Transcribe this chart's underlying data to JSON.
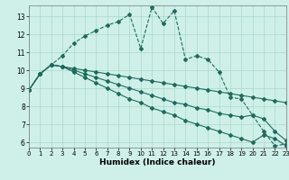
{
  "xlabel": "Humidex (Indice chaleur)",
  "background_color": "#cef0e8",
  "grid_color": "#aad8cc",
  "line_color": "#1e6b5e",
  "xlim": [
    0,
    23
  ],
  "ylim": [
    5.7,
    13.6
  ],
  "xticks": [
    0,
    1,
    2,
    3,
    4,
    5,
    6,
    7,
    8,
    9,
    10,
    11,
    12,
    13,
    14,
    15,
    16,
    17,
    18,
    19,
    20,
    21,
    22,
    23
  ],
  "yticks": [
    6,
    7,
    8,
    9,
    10,
    11,
    12,
    13
  ],
  "series1_x": [
    0,
    1,
    2,
    3,
    4,
    5,
    6,
    7,
    8,
    9,
    10,
    11,
    12,
    13,
    14,
    15,
    16,
    17,
    18,
    19,
    20,
    21,
    22,
    23
  ],
  "series1_y": [
    8.9,
    9.8,
    10.3,
    10.8,
    11.5,
    11.9,
    12.2,
    12.5,
    12.7,
    13.1,
    11.2,
    13.5,
    12.6,
    13.3,
    10.6,
    10.8,
    10.6,
    9.9,
    8.5,
    8.4,
    7.5,
    6.6,
    5.8,
    5.9
  ],
  "series2_x": [
    0,
    1,
    2,
    3,
    4,
    5,
    6,
    7,
    8,
    9,
    10,
    11,
    12,
    13,
    14,
    15,
    16,
    17,
    18,
    19,
    20,
    21,
    22,
    23
  ],
  "series2_y": [
    8.9,
    9.8,
    10.3,
    10.2,
    10.1,
    10.0,
    9.9,
    9.8,
    9.7,
    9.6,
    9.5,
    9.4,
    9.3,
    9.2,
    9.1,
    9.0,
    8.9,
    8.8,
    8.7,
    8.6,
    8.5,
    8.4,
    8.3,
    8.2
  ],
  "series3_x": [
    0,
    1,
    2,
    3,
    4,
    5,
    6,
    7,
    8,
    9,
    10,
    11,
    12,
    13,
    14,
    15,
    16,
    17,
    18,
    19,
    20,
    21,
    22,
    23
  ],
  "series3_y": [
    8.9,
    9.8,
    10.3,
    10.2,
    10.0,
    9.8,
    9.6,
    9.4,
    9.2,
    9.0,
    8.8,
    8.6,
    8.4,
    8.2,
    8.1,
    7.9,
    7.8,
    7.6,
    7.5,
    7.4,
    7.5,
    7.3,
    6.6,
    6.1
  ],
  "series4_x": [
    0,
    1,
    2,
    3,
    4,
    5,
    6,
    7,
    8,
    9,
    10,
    11,
    12,
    13,
    14,
    15,
    16,
    17,
    18,
    19,
    20,
    21,
    22,
    23
  ],
  "series4_y": [
    8.9,
    9.8,
    10.3,
    10.2,
    9.9,
    9.6,
    9.3,
    9.0,
    8.7,
    8.4,
    8.2,
    7.9,
    7.7,
    7.5,
    7.2,
    7.0,
    6.8,
    6.6,
    6.4,
    6.2,
    6.0,
    6.4,
    6.2,
    5.8
  ]
}
